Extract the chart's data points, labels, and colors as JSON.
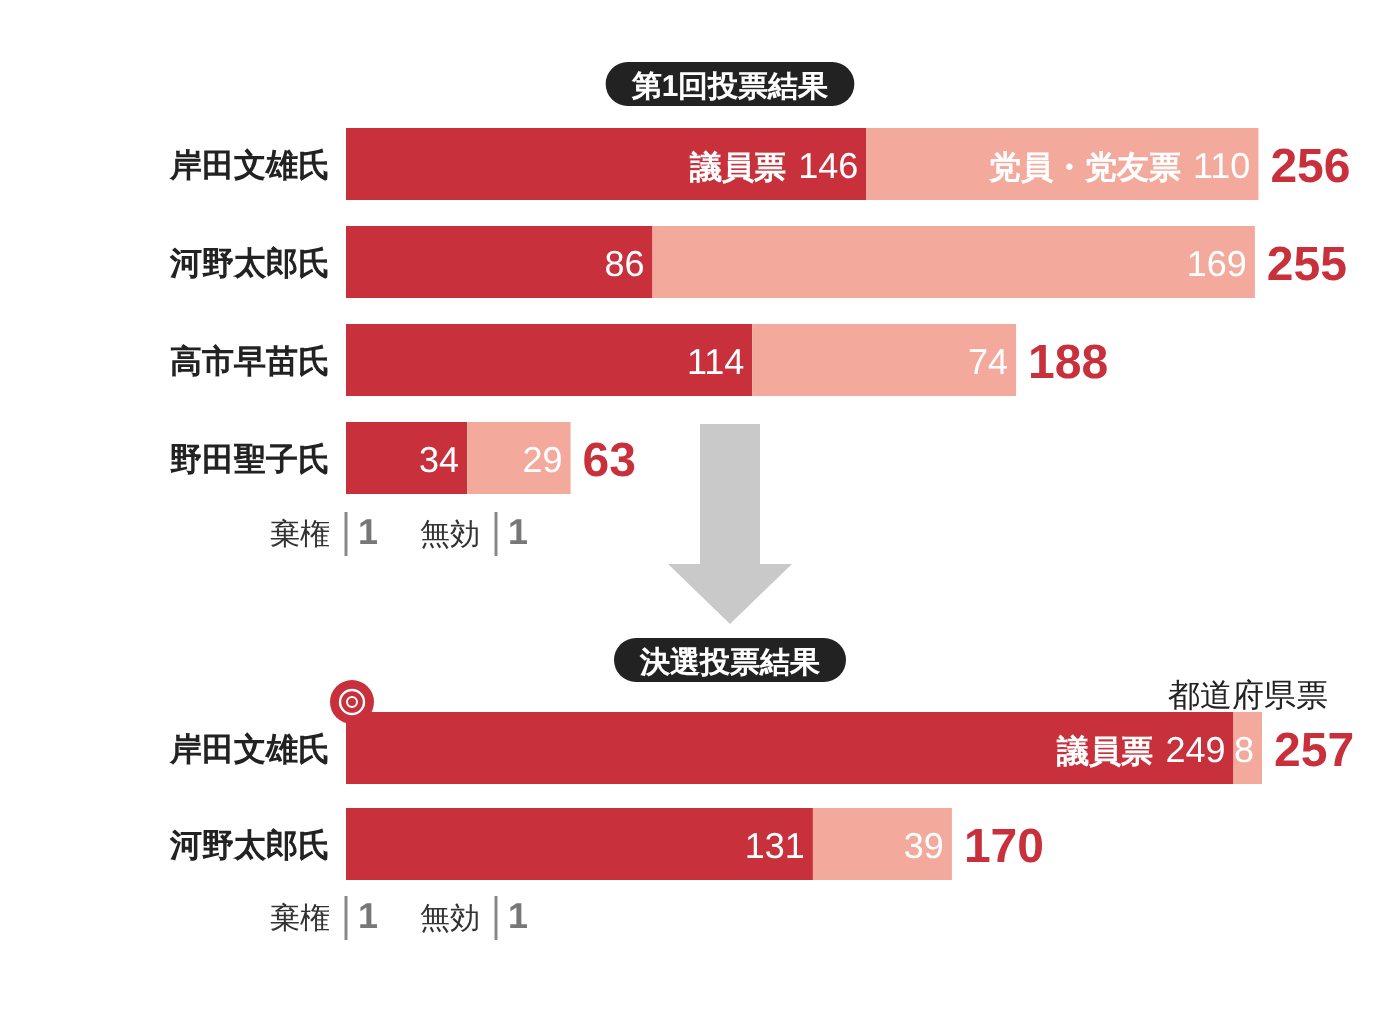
{
  "chart_data": [
    {
      "type": "bar",
      "orientation": "horizontal",
      "stacked": true,
      "title": "第1回投票結果",
      "categories": [
        "岸田文雄氏",
        "河野太郎氏",
        "高市早苗氏",
        "野田聖子氏"
      ],
      "series": [
        {
          "name": "議員票",
          "color": "#c8303c",
          "values": [
            146,
            86,
            114,
            34
          ]
        },
        {
          "name": "党員・党友票",
          "color": "#f3aa9c",
          "values": [
            110,
            169,
            74,
            29
          ]
        }
      ],
      "data_labels": true,
      "totals": [
        "256",
        "255",
        "188",
        "63"
      ],
      "annotations": [
        "棄権",
        "1",
        "無効",
        "1"
      ]
    },
    {
      "type": "bar",
      "orientation": "horizontal",
      "stacked": true,
      "title": "決選投票結果",
      "categories": [
        "岸田文雄氏",
        "河野太郎氏"
      ],
      "series": [
        {
          "name": "議員票",
          "color": "#c8303c",
          "values": [
            249,
            131
          ]
        },
        {
          "name": "都道府県票",
          "color": "#f3aa9c",
          "values": [
            8,
            39
          ]
        }
      ],
      "data_labels": true,
      "totals": [
        "257",
        "170"
      ],
      "annotations": [
        "棄権",
        "1",
        "無効",
        "1"
      ]
    }
  ]
}
